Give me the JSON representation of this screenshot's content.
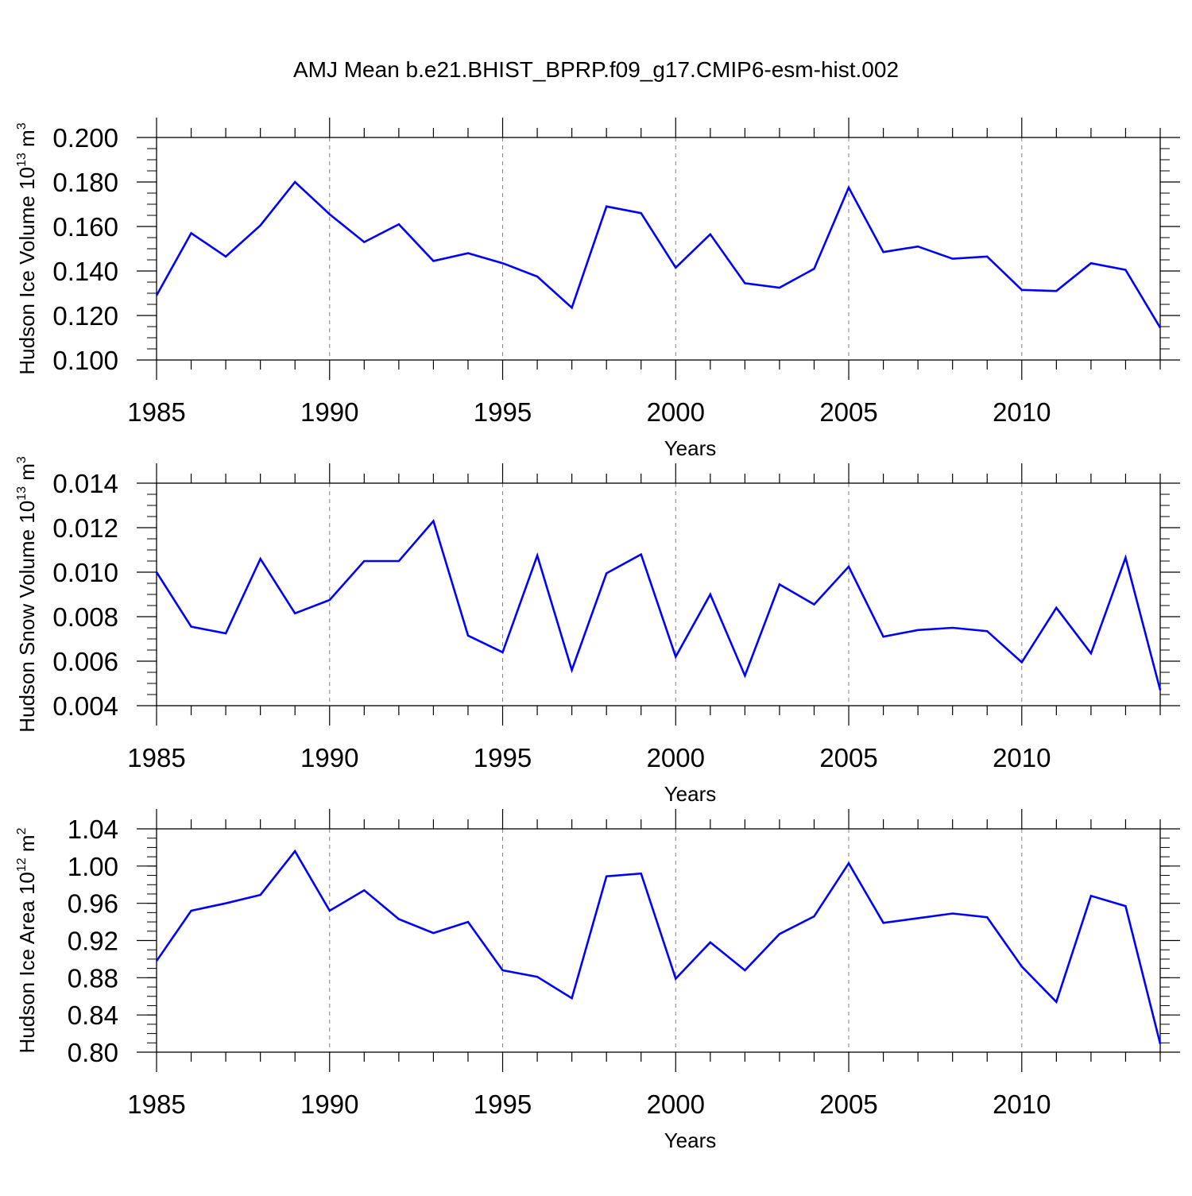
{
  "figure_title": "AMJ Mean b.e21.BHIST_BPRP.f09_g17.CMIP6-esm-hist.002",
  "colors": {
    "line": "#0000ff",
    "axis": "#000000",
    "grid": "#808080",
    "background": "#ffffff"
  },
  "chart_data": [
    {
      "type": "line",
      "ylabel": "Hudson Ice Volume 10",
      "ylabel_exp": "13",
      "ylabel_unit": "m",
      "ylabel_unit_exp": "3",
      "xlabel": "Years",
      "xlim": [
        1985,
        2014
      ],
      "ylim": [
        0.1,
        0.2
      ],
      "yticks": [
        "0.100",
        "0.120",
        "0.140",
        "0.160",
        "0.180",
        "0.200"
      ],
      "yminor_step": 0.005,
      "xticks": [
        "1985",
        "1990",
        "1995",
        "2000",
        "2005",
        "2010"
      ],
      "grid": "vertical-dashed",
      "series": [
        {
          "x": [
            1985,
            1986,
            1987,
            1988,
            1989,
            1990,
            1991,
            1992,
            1993,
            1994,
            1995,
            1996,
            1997,
            1998,
            1999,
            2000,
            2001,
            2002,
            2003,
            2004,
            2005,
            2006,
            2007,
            2008,
            2009,
            2010,
            2011,
            2012,
            2013,
            2014
          ],
          "values": [
            0.129,
            0.157,
            0.1465,
            0.1605,
            0.18,
            0.1655,
            0.153,
            0.161,
            0.1445,
            0.148,
            0.1435,
            0.1375,
            0.1235,
            0.169,
            0.166,
            0.1415,
            0.1565,
            0.1345,
            0.1325,
            0.141,
            0.1775,
            0.1485,
            0.151,
            0.1455,
            0.1465,
            0.1315,
            0.131,
            0.1435,
            0.1405,
            0.1145
          ]
        }
      ]
    },
    {
      "type": "line",
      "ylabel": "Hudson Snow Volume 10",
      "ylabel_exp": "13",
      "ylabel_unit": "m",
      "ylabel_unit_exp": "3",
      "xlabel": "Years",
      "xlim": [
        1985,
        2014
      ],
      "ylim": [
        0.004,
        0.014
      ],
      "yticks": [
        "0.004",
        "0.006",
        "0.008",
        "0.010",
        "0.012",
        "0.014"
      ],
      "yminor_step": 0.0005,
      "xticks": [
        "1985",
        "1990",
        "1995",
        "2000",
        "2005",
        "2010"
      ],
      "grid": "vertical-dashed",
      "series": [
        {
          "x": [
            1985,
            1986,
            1987,
            1988,
            1989,
            1990,
            1991,
            1992,
            1993,
            1994,
            1995,
            1996,
            1997,
            1998,
            1999,
            2000,
            2001,
            2002,
            2003,
            2004,
            2005,
            2006,
            2007,
            2008,
            2009,
            2010,
            2011,
            2012,
            2013,
            2014
          ],
          "values": [
            0.01,
            0.00755,
            0.00725,
            0.0106,
            0.00815,
            0.00875,
            0.0105,
            0.0105,
            0.0123,
            0.00715,
            0.0064,
            0.01075,
            0.0056,
            0.00995,
            0.0108,
            0.0062,
            0.009,
            0.00535,
            0.00945,
            0.00855,
            0.01025,
            0.0071,
            0.0074,
            0.0075,
            0.00735,
            0.00595,
            0.0084,
            0.00635,
            0.01065,
            0.0047
          ]
        }
      ]
    },
    {
      "type": "line",
      "ylabel": "Hudson Ice Area 10",
      "ylabel_exp": "12",
      "ylabel_unit": "m",
      "ylabel_unit_exp": "2",
      "xlabel": "Years",
      "xlim": [
        1985,
        2014
      ],
      "ylim": [
        0.8,
        1.04
      ],
      "yticks": [
        "0.80",
        "0.84",
        "0.88",
        "0.92",
        "0.96",
        "1.00",
        "1.04"
      ],
      "yminor_step": 0.01,
      "xticks": [
        "1985",
        "1990",
        "1995",
        "2000",
        "2005",
        "2010"
      ],
      "grid": "vertical-dashed",
      "series": [
        {
          "x": [
            1985,
            1986,
            1987,
            1988,
            1989,
            1990,
            1991,
            1992,
            1993,
            1994,
            1995,
            1996,
            1997,
            1998,
            1999,
            2000,
            2001,
            2002,
            2003,
            2004,
            2005,
            2006,
            2007,
            2008,
            2009,
            2010,
            2011,
            2012,
            2013,
            2014
          ],
          "values": [
            0.898,
            0.952,
            0.96,
            0.969,
            1.016,
            0.952,
            0.974,
            0.943,
            0.928,
            0.94,
            0.888,
            0.881,
            0.858,
            0.989,
            0.992,
            0.879,
            0.918,
            0.888,
            0.927,
            0.946,
            1.003,
            0.939,
            0.944,
            0.949,
            0.945,
            0.892,
            0.854,
            0.968,
            0.957,
            0.809
          ]
        }
      ]
    }
  ]
}
